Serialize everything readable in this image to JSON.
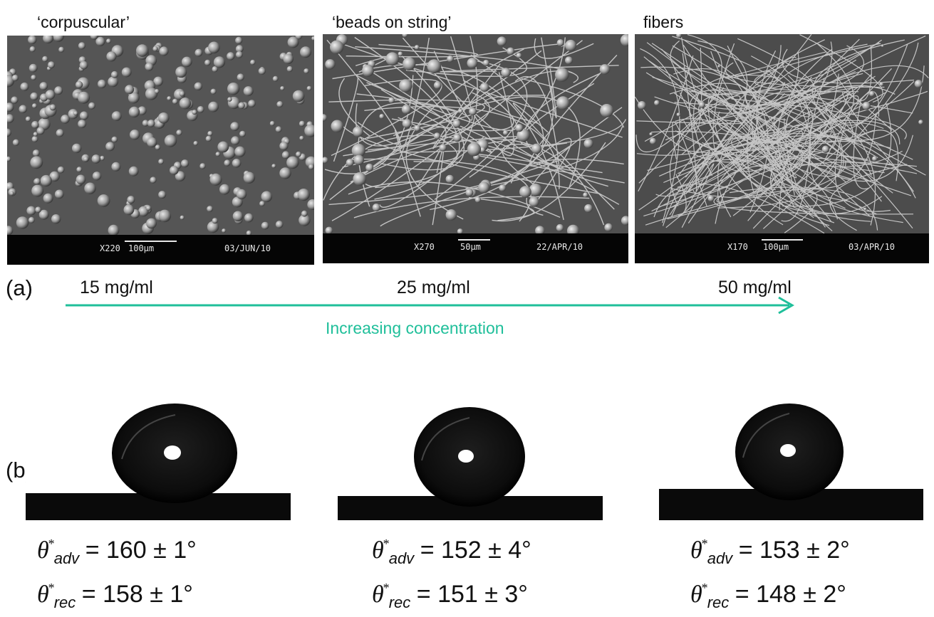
{
  "panel_a": {
    "label": "(a)",
    "images": [
      {
        "title": "‘corpuscular’",
        "magnification": "X220",
        "scale": "100µm",
        "date": "03/JUN/10"
      },
      {
        "title": "‘beads on string’",
        "magnification": "X270",
        "scale": "50µm",
        "date": "22/APR/10"
      },
      {
        "title": "fibers",
        "magnification": "X170",
        "scale": "100µm",
        "date": "03/APR/10"
      }
    ],
    "concentrations": [
      "15 mg/ml",
      "25 mg/ml",
      "50 mg/ml"
    ],
    "arrow_caption": "Increasing concentration",
    "arrow_color": "#1fbf9a"
  },
  "panel_b": {
    "label": "(b)",
    "drops": [
      {
        "adv_symbol": "θ",
        "adv_star": "*",
        "adv_sub": "adv",
        "adv_value": "= 160 ± 1°",
        "rec_symbol": "θ",
        "rec_star": "*",
        "rec_sub": "rec",
        "rec_value": "= 158 ± 1°"
      },
      {
        "adv_symbol": "θ",
        "adv_star": "*",
        "adv_sub": "adv",
        "adv_value": "= 152 ± 4°",
        "rec_symbol": "θ",
        "rec_star": "*",
        "rec_sub": "rec",
        "rec_value": "= 151 ± 3°"
      },
      {
        "adv_symbol": "θ",
        "adv_star": "*",
        "adv_sub": "adv",
        "adv_value": "= 153 ± 2°",
        "rec_symbol": "θ",
        "rec_star": "*",
        "rec_sub": "rec",
        "rec_value": "= 148 ± 2°"
      }
    ]
  }
}
